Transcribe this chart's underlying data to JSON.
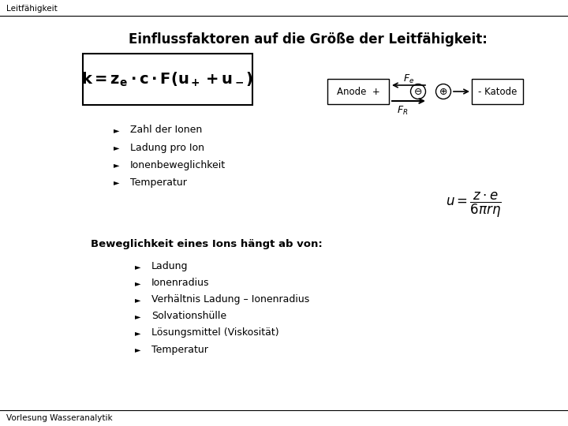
{
  "title_header": "Leitfähigkeit",
  "main_title": "Einflussfaktoren auf die Größe der Leitfähigkeit:",
  "footer": "Vorlesung Wasseranalytik",
  "bullet_items_1": [
    "Zahl der Ionen",
    "Ladung pro Ion",
    "Ionenbeweglichkeit",
    "Temperatur"
  ],
  "bold_line": "Beweglichkeit eines Ions hängt ab von:",
  "bullet_items_2": [
    "Ladung",
    "Ionenradius",
    "Verhältnis Ladung – Ionenradius",
    "Solvationshülle",
    "Lösungsmittel (Viskosität)",
    "Temperatur"
  ],
  "bg_color": "#ffffff",
  "text_color": "#000000"
}
